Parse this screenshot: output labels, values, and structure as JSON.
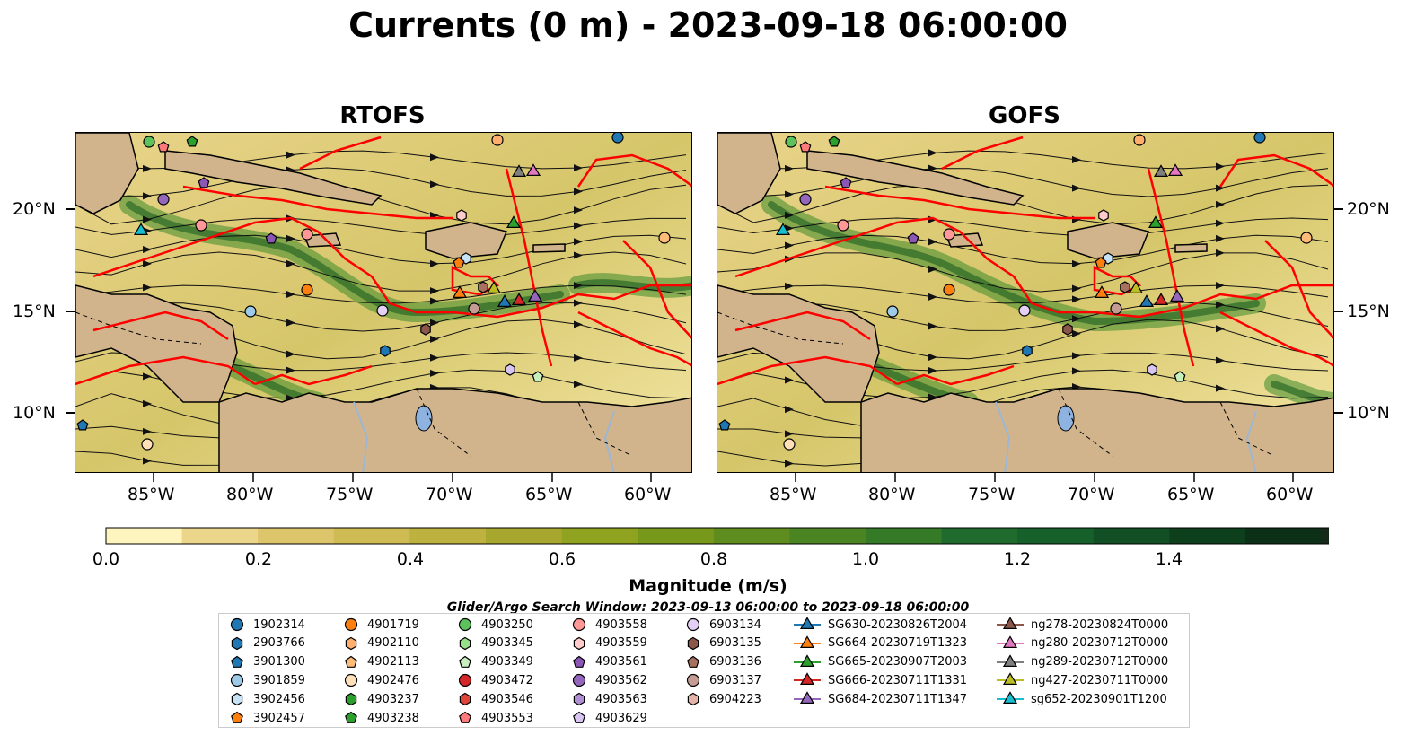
{
  "title": "Currents (0 m) - 2023-09-18 06:00:00",
  "panels": [
    {
      "title": "RTOFS"
    },
    {
      "title": "GOFS"
    }
  ],
  "axes": {
    "x_ticks": [
      "85°W",
      "80°W",
      "75°W",
      "70°W",
      "65°W",
      "60°W"
    ],
    "y_ticks": [
      "20°N",
      "15°N",
      "10°N"
    ]
  },
  "colorbar": {
    "label": "Magnitude (m/s)",
    "ticks": [
      "0.0",
      "0.2",
      "0.4",
      "0.6",
      "0.8",
      "1.0",
      "1.2",
      "1.4"
    ],
    "colors": [
      "#fdf5bd",
      "#ecd68c",
      "#ddc56c",
      "#cfbb54",
      "#bdb140",
      "#a7a62f",
      "#8fa321",
      "#78981b",
      "#5f8c1e",
      "#4b8423",
      "#357a26",
      "#1f6b2d",
      "#16602c",
      "#124f24",
      "#0e3f1d",
      "#0b2f17",
      "#16281a"
    ]
  },
  "legend": {
    "title": "Glider/Argo Search Window: 2023-09-13 06:00:00 to 2023-09-18 06:00:00",
    "columns": [
      [
        {
          "label": "1902314",
          "marker": "circle",
          "color": "#1f77b4"
        },
        {
          "label": "2903766",
          "marker": "hexagon",
          "color": "#1f77b4"
        },
        {
          "label": "3901300",
          "marker": "pentagon",
          "color": "#1f77b4"
        },
        {
          "label": "3901859",
          "marker": "circle",
          "color": "#9ecae9"
        },
        {
          "label": "3902456",
          "marker": "hexagon",
          "color": "#c6e2f7"
        },
        {
          "label": "3902457",
          "marker": "pentagon",
          "color": "#ff7f0e"
        }
      ],
      [
        {
          "label": "4901719",
          "marker": "circle",
          "color": "#ff7f0e"
        },
        {
          "label": "4902110",
          "marker": "hexagon",
          "color": "#ffae6b"
        },
        {
          "label": "4902113",
          "marker": "pentagon",
          "color": "#ffbb78"
        },
        {
          "label": "4902476",
          "marker": "circle",
          "color": "#ffe0b8"
        },
        {
          "label": "4903237",
          "marker": "hexagon",
          "color": "#2ca02c"
        },
        {
          "label": "4903238",
          "marker": "pentagon",
          "color": "#2ca02c"
        }
      ],
      [
        {
          "label": "4903250",
          "marker": "circle",
          "color": "#5cc25c"
        },
        {
          "label": "4903345",
          "marker": "hexagon",
          "color": "#98df8a"
        },
        {
          "label": "4903349",
          "marker": "pentagon",
          "color": "#c7f0bd"
        },
        {
          "label": "4903472",
          "marker": "circle",
          "color": "#d62728"
        },
        {
          "label": "4903546",
          "marker": "hexagon",
          "color": "#e0453a"
        },
        {
          "label": "4903553",
          "marker": "pentagon",
          "color": "#ff7a7a"
        }
      ],
      [
        {
          "label": "4903558",
          "marker": "circle",
          "color": "#ff9896"
        },
        {
          "label": "4903559",
          "marker": "hexagon",
          "color": "#ffcccb"
        },
        {
          "label": "4903561",
          "marker": "pentagon",
          "color": "#8c56b4"
        },
        {
          "label": "4903562",
          "marker": "circle",
          "color": "#9467bd"
        },
        {
          "label": "4903563",
          "marker": "hexagon",
          "color": "#b08fd4"
        },
        {
          "label": "4903629",
          "marker": "pentagon",
          "color": "#d8c6f0"
        }
      ],
      [
        {
          "label": "6903134",
          "marker": "circle",
          "color": "#e4d0f5"
        },
        {
          "label": "6903135",
          "marker": "hexagon",
          "color": "#8c564b"
        },
        {
          "label": "6903136",
          "marker": "pentagon",
          "color": "#a8705f"
        },
        {
          "label": "6903137",
          "marker": "circle",
          "color": "#c49c94"
        },
        {
          "label": "6904223",
          "marker": "hexagon",
          "color": "#e2b3a6"
        }
      ],
      [
        {
          "label": "SG630-20230826T2004",
          "marker": "triangle",
          "color": "#1f77b4"
        },
        {
          "label": "SG664-20230719T1323",
          "marker": "triangle",
          "color": "#ff7f0e"
        },
        {
          "label": "SG665-20230907T2003",
          "marker": "triangle",
          "color": "#2ca02c"
        },
        {
          "label": "SG666-20230711T1331",
          "marker": "triangle",
          "color": "#d62728"
        },
        {
          "label": "SG684-20230711T1347",
          "marker": "triangle",
          "color": "#9467bd"
        }
      ],
      [
        {
          "label": "ng278-20230824T0000",
          "marker": "triangle",
          "color": "#8c564b"
        },
        {
          "label": "ng280-20230712T0000",
          "marker": "triangle",
          "color": "#e377c2"
        },
        {
          "label": "ng289-20230712T0000",
          "marker": "triangle",
          "color": "#7f7f7f"
        },
        {
          "label": "ng427-20230711T0000",
          "marker": "triangle",
          "color": "#bcbd22"
        },
        {
          "label": "sg652-20230901T1200",
          "marker": "triangle",
          "color": "#17becf"
        }
      ]
    ]
  }
}
